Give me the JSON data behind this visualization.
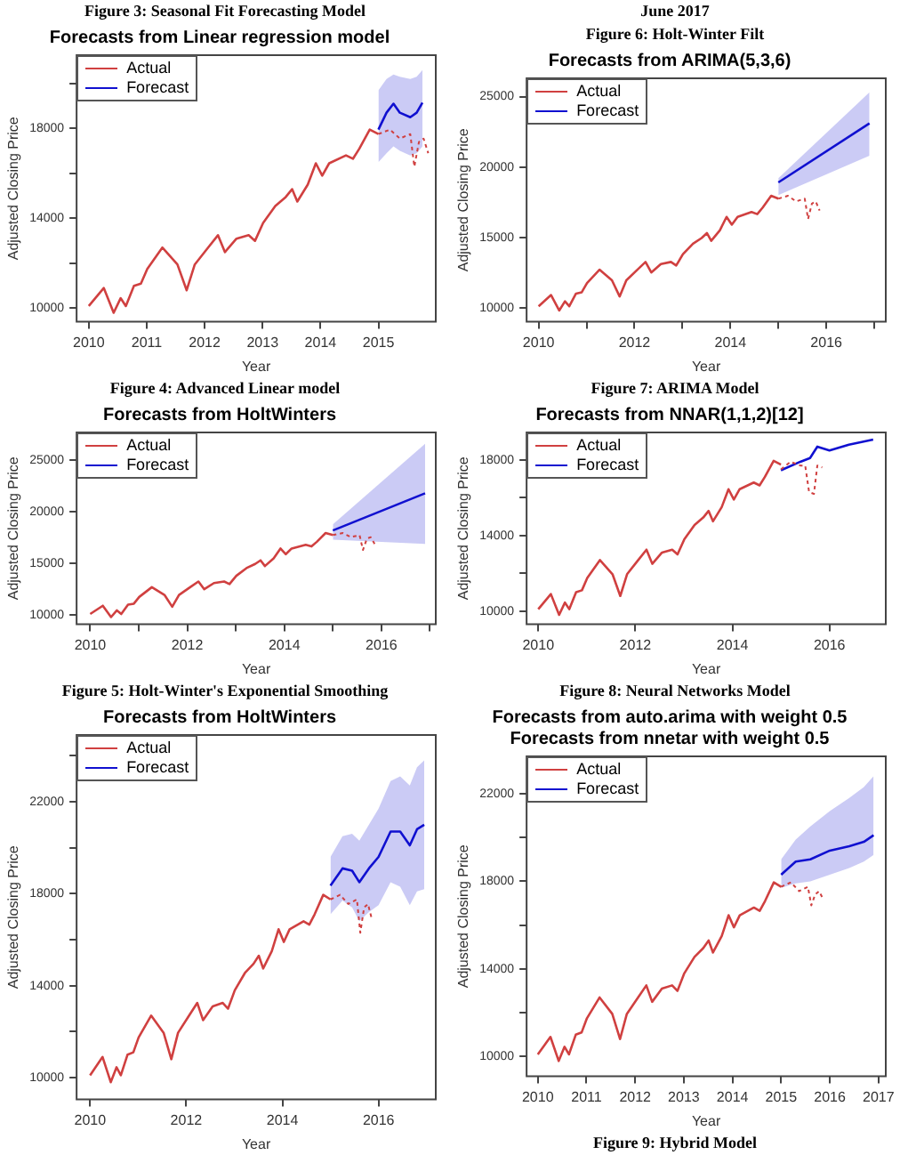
{
  "chart_data": [
    {
      "type": "line",
      "title": "Forecasts from Linear regression model",
      "xlabel": "Year",
      "ylabel": "Adjusted Closing Price",
      "annotations": [
        "Figure 3: Seasonal Fit Forecasting Model",
        "Figure 4: Advanced Linear model"
      ],
      "legend": "top left",
      "grid": false,
      "xlim": [
        2009.79,
        2015.99
      ],
      "xticks": [
        2010,
        2011,
        2012,
        2013,
        2014,
        2015
      ],
      "ylim": [
        9400,
        21260
      ],
      "yticks": [
        10000,
        {
          "value": 12000,
          "label": null
        },
        14000,
        {
          "value": 16000,
          "label": null
        },
        18000,
        {
          "value": 20000,
          "label": null
        }
      ],
      "series": [
        {
          "name": "Actual",
          "color": "#d04040",
          "x": [
            2010.0,
            2010.26,
            2010.43,
            2010.55,
            2010.64,
            2010.78,
            2010.9,
            2011.01,
            2011.27,
            2011.53,
            2011.69,
            2011.83,
            2012.06,
            2012.23,
            2012.35,
            2012.55,
            2012.76,
            2012.87,
            2013.01,
            2013.22,
            2013.4,
            2013.51,
            2013.6,
            2013.78,
            2013.92,
            2014.03,
            2014.15,
            2014.44,
            2014.56,
            2014.67,
            2014.85,
            2015.0
          ],
          "values": [
            10100,
            10900,
            9800,
            10450,
            10100,
            11000,
            11100,
            11750,
            12700,
            11950,
            10800,
            11950,
            12700,
            13250,
            12500,
            13100,
            13250,
            13000,
            13800,
            14550,
            14950,
            15300,
            14750,
            15500,
            16450,
            15900,
            16450,
            16800,
            16650,
            17100,
            17950,
            17750
          ]
        },
        {
          "color": "#d04040",
          "line_style": "dotted",
          "x": [
            2015.0,
            2015.2,
            2015.37,
            2015.55,
            2015.62,
            2015.7,
            2015.78,
            2015.86
          ],
          "values": [
            17750,
            17950,
            17550,
            17750,
            16300,
            17400,
            17550,
            16900
          ]
        },
        {
          "name": "Forecast",
          "color": "#1010d0",
          "x": [
            2015.0,
            2015.14,
            2015.26,
            2015.37,
            2015.55,
            2015.66,
            2015.76
          ],
          "values": [
            17950,
            18700,
            19100,
            18700,
            18500,
            18700,
            19150
          ],
          "upper": [
            19700,
            20200,
            20400,
            20300,
            20200,
            20300,
            20600
          ],
          "lower": [
            16500,
            16900,
            17200,
            17000,
            16800,
            16900,
            17200
          ]
        }
      ]
    },
    {
      "type": "line",
      "title": "Forecasts from ARIMA(5,3,6)",
      "xlabel": "Year",
      "ylabel": "Adjusted Closing Price",
      "annotations": [
        "June 2017",
        "Figure 6: Holt-Winter Filt",
        "Figure 7: ARIMA Model"
      ],
      "legend": "top left",
      "grid": false,
      "xlim": [
        2009.75,
        2017.24
      ],
      "xticks": [
        2010,
        {
          "value": 2011,
          "label": null
        },
        2012,
        {
          "value": 2013,
          "label": null
        },
        2014,
        {
          "value": 2015,
          "label": null
        },
        2016,
        {
          "value": 2017,
          "label": null
        }
      ],
      "ylim": [
        9000,
        26300
      ],
      "yticks": [
        10000,
        15000,
        20000,
        25000
      ],
      "series": [
        {
          "name": "Actual",
          "color": "#d04040",
          "x": [
            2010.0,
            2010.26,
            2010.43,
            2010.55,
            2010.64,
            2010.78,
            2010.9,
            2011.01,
            2011.27,
            2011.53,
            2011.69,
            2011.83,
            2012.06,
            2012.23,
            2012.35,
            2012.55,
            2012.76,
            2012.87,
            2013.01,
            2013.22,
            2013.4,
            2013.51,
            2013.6,
            2013.78,
            2013.92,
            2014.03,
            2014.15,
            2014.44,
            2014.56,
            2014.67,
            2014.85,
            2015.0
          ],
          "values": [
            10100,
            10900,
            9800,
            10450,
            10100,
            11000,
            11100,
            11750,
            12700,
            11950,
            10800,
            11950,
            12700,
            13250,
            12500,
            13100,
            13250,
            13000,
            13800,
            14550,
            14950,
            15300,
            14750,
            15500,
            16450,
            15900,
            16450,
            16800,
            16650,
            17100,
            17950,
            17750
          ]
        },
        {
          "color": "#d04040",
          "line_style": "dotted",
          "x": [
            2015.0,
            2015.2,
            2015.37,
            2015.55,
            2015.62,
            2015.7,
            2015.78,
            2015.86
          ],
          "values": [
            17750,
            17950,
            17550,
            17750,
            16300,
            17400,
            17550,
            16900
          ]
        },
        {
          "name": "Forecast",
          "color": "#1010d0",
          "x": [
            2015.0,
            2016.9
          ],
          "values": [
            18900,
            23100
          ],
          "upper": [
            19200,
            25300
          ],
          "lower": [
            18000,
            20800
          ]
        }
      ]
    },
    {
      "type": "line",
      "title": "Forecasts from HoltWinters",
      "xlabel": "Year",
      "ylabel": "Adjusted Closing Price",
      "annotations": [
        "Figure 5: Holt-Winter's Exponential Smoothing"
      ],
      "legend": "top left",
      "grid": false,
      "xlim": [
        2009.72,
        2017.12
      ],
      "xticks": [
        2010,
        {
          "value": 2011,
          "label": null
        },
        2012,
        {
          "value": 2013,
          "label": null
        },
        2014,
        {
          "value": 2015,
          "label": null
        },
        2016,
        {
          "value": 2017,
          "label": null
        }
      ],
      "ylim": [
        9100,
        27700
      ],
      "yticks": [
        10000,
        15000,
        20000,
        25000
      ],
      "series": [
        {
          "name": "Actual",
          "color": "#d04040",
          "x": [
            2010.0,
            2010.26,
            2010.43,
            2010.55,
            2010.64,
            2010.78,
            2010.9,
            2011.01,
            2011.27,
            2011.53,
            2011.69,
            2011.83,
            2012.06,
            2012.23,
            2012.35,
            2012.55,
            2012.76,
            2012.87,
            2013.01,
            2013.22,
            2013.4,
            2013.51,
            2013.6,
            2013.78,
            2013.92,
            2014.03,
            2014.15,
            2014.44,
            2014.56,
            2014.67,
            2014.85,
            2015.0
          ],
          "values": [
            10100,
            10900,
            9800,
            10450,
            10100,
            11000,
            11100,
            11750,
            12700,
            11950,
            10800,
            11950,
            12700,
            13250,
            12500,
            13100,
            13250,
            13000,
            13800,
            14550,
            14950,
            15300,
            14750,
            15500,
            16450,
            15900,
            16450,
            16800,
            16650,
            17100,
            17950,
            17750
          ]
        },
        {
          "color": "#d04040",
          "line_style": "dotted",
          "x": [
            2015.0,
            2015.2,
            2015.37,
            2015.55,
            2015.62,
            2015.7,
            2015.78,
            2015.86
          ],
          "values": [
            17750,
            17950,
            17550,
            17750,
            16300,
            17400,
            17550,
            16900
          ]
        },
        {
          "name": "Forecast",
          "color": "#1010d0",
          "x": [
            2015.0,
            2016.9
          ],
          "values": [
            18200,
            21800
          ],
          "upper": [
            18800,
            26600
          ],
          "lower": [
            17300,
            16900
          ]
        }
      ]
    },
    {
      "type": "line",
      "title": "Forecasts from NNAR(1,1,2)[12]",
      "xlabel": "Year",
      "ylabel": "Adjusted Closing Price",
      "annotations": [
        "Figure 8: Neural Networks Model"
      ],
      "legend": "top left",
      "grid": false,
      "xlim": [
        2009.76,
        2017.16
      ],
      "xticks": [
        2010,
        2012,
        2014,
        2016
      ],
      "ylim": [
        9300,
        19450
      ],
      "yticks": [
        10000,
        {
          "value": 12000,
          "label": null
        },
        14000,
        {
          "value": 16000,
          "label": null
        },
        18000
      ],
      "series": [
        {
          "name": "Actual",
          "color": "#d04040",
          "x": [
            2010.0,
            2010.26,
            2010.43,
            2010.55,
            2010.64,
            2010.78,
            2010.9,
            2011.01,
            2011.27,
            2011.53,
            2011.69,
            2011.83,
            2012.06,
            2012.23,
            2012.35,
            2012.55,
            2012.76,
            2012.87,
            2013.01,
            2013.22,
            2013.4,
            2013.51,
            2013.6,
            2013.78,
            2013.92,
            2014.03,
            2014.15,
            2014.44,
            2014.56,
            2014.67,
            2014.85,
            2015.0
          ],
          "values": [
            10100,
            10900,
            9800,
            10450,
            10100,
            11000,
            11100,
            11750,
            12700,
            11950,
            10800,
            11950,
            12700,
            13250,
            12500,
            13100,
            13250,
            13000,
            13800,
            14550,
            14950,
            15300,
            14750,
            15500,
            16450,
            15900,
            16450,
            16800,
            16650,
            17100,
            17950,
            17750
          ]
        },
        {
          "color": "#d04040",
          "line_style": "dotted",
          "x": [
            2015.0,
            2015.2,
            2015.4,
            2015.5,
            2015.58,
            2015.68,
            2015.75,
            2015.85
          ],
          "values": [
            17500,
            17900,
            17700,
            17700,
            16300,
            16200,
            17700,
            17600
          ]
        },
        {
          "name": "Forecast",
          "color": "#1010d0",
          "x": [
            2015.0,
            2015.4,
            2015.6,
            2015.75,
            2016.0,
            2016.4,
            2016.9
          ],
          "values": [
            17450,
            17900,
            18100,
            18700,
            18500,
            18800,
            19070
          ]
        }
      ]
    },
    {
      "type": "line",
      "title": "Forecasts from HoltWinters",
      "xlabel": "Year",
      "ylabel": "Adjusted Closing Price",
      "legend": "top left",
      "grid": false,
      "xlim": [
        2009.72,
        2017.19
      ],
      "xticks": [
        2010,
        2012,
        2014,
        2016
      ],
      "ylim": [
        9050,
        24900
      ],
      "yticks": [
        10000,
        {
          "value": 12000,
          "label": null
        },
        14000,
        {
          "value": 16000,
          "label": null
        },
        18000,
        {
          "value": 20000,
          "label": null
        },
        22000,
        {
          "value": 24000,
          "label": null
        }
      ],
      "series": [
        {
          "name": "Actual",
          "color": "#d04040",
          "x": [
            2010.0,
            2010.26,
            2010.43,
            2010.55,
            2010.64,
            2010.78,
            2010.9,
            2011.01,
            2011.27,
            2011.53,
            2011.69,
            2011.83,
            2012.06,
            2012.23,
            2012.35,
            2012.55,
            2012.76,
            2012.87,
            2013.01,
            2013.22,
            2013.4,
            2013.51,
            2013.6,
            2013.78,
            2013.92,
            2014.03,
            2014.15,
            2014.44,
            2014.56,
            2014.67,
            2014.85,
            2015.0
          ],
          "values": [
            10100,
            10900,
            9800,
            10450,
            10100,
            11000,
            11100,
            11750,
            12700,
            11950,
            10800,
            11950,
            12700,
            13250,
            12500,
            13100,
            13250,
            13000,
            13800,
            14550,
            14950,
            15300,
            14750,
            15500,
            16450,
            15900,
            16450,
            16800,
            16650,
            17100,
            17950,
            17750
          ]
        },
        {
          "color": "#d04040",
          "line_style": "dotted",
          "x": [
            2015.0,
            2015.2,
            2015.37,
            2015.55,
            2015.62,
            2015.7,
            2015.78,
            2015.86
          ],
          "values": [
            17750,
            17950,
            17550,
            17750,
            16300,
            17400,
            17550,
            16900
          ]
        },
        {
          "name": "Forecast",
          "color": "#1010d0",
          "x": [
            2015.0,
            2015.25,
            2015.45,
            2015.6,
            2015.8,
            2016.0,
            2016.25,
            2016.45,
            2016.65,
            2016.8,
            2016.95
          ],
          "values": [
            18350,
            19100,
            19000,
            18500,
            19100,
            19600,
            20700,
            20700,
            20100,
            20800,
            21000
          ],
          "upper": [
            19600,
            20500,
            20600,
            20300,
            21000,
            21700,
            22900,
            23100,
            22700,
            23500,
            23800
          ],
          "lower": [
            17100,
            17700,
            17400,
            16800,
            17200,
            17500,
            18500,
            18300,
            17500,
            18100,
            18200
          ]
        }
      ]
    },
    {
      "type": "line",
      "title": "Forecasts from auto.arima with weight 0.5",
      "subtitle": "Forecasts from nnetar with weight 0.5",
      "xlabel": "Year",
      "ylabel": "Adjusted Closing Price",
      "annotations": [
        "Figure 9: Hybrid Model"
      ],
      "legend": "top left",
      "grid": false,
      "xlim": [
        2009.77,
        2017.15
      ],
      "xticks": [
        2010,
        2011,
        2012,
        2013,
        2014,
        2015,
        2016,
        2017
      ],
      "ylim": [
        9100,
        23700
      ],
      "yticks": [
        10000,
        {
          "value": 12000,
          "label": null
        },
        14000,
        {
          "value": 16000,
          "label": null
        },
        18000,
        {
          "value": 20000,
          "label": null
        },
        22000
      ],
      "series": [
        {
          "name": "Actual",
          "color": "#d04040",
          "x": [
            2010.0,
            2010.26,
            2010.43,
            2010.55,
            2010.64,
            2010.78,
            2010.9,
            2011.01,
            2011.27,
            2011.53,
            2011.69,
            2011.83,
            2012.06,
            2012.23,
            2012.35,
            2012.55,
            2012.76,
            2012.87,
            2013.01,
            2013.22,
            2013.4,
            2013.51,
            2013.6,
            2013.78,
            2013.92,
            2014.03,
            2014.15,
            2014.44,
            2014.56,
            2014.67,
            2014.85,
            2015.0
          ],
          "values": [
            10100,
            10900,
            9800,
            10450,
            10100,
            11000,
            11100,
            11750,
            12700,
            11950,
            10800,
            11950,
            12700,
            13250,
            12500,
            13100,
            13250,
            13000,
            13800,
            14550,
            14950,
            15300,
            14750,
            15500,
            16450,
            15900,
            16450,
            16800,
            16650,
            17100,
            17950,
            17750
          ]
        },
        {
          "color": "#d04040",
          "line_style": "dotted",
          "x": [
            2015.0,
            2015.2,
            2015.37,
            2015.55,
            2015.62,
            2015.7,
            2015.78,
            2015.86
          ],
          "values": [
            17750,
            17950,
            17550,
            17750,
            16900,
            17400,
            17550,
            17200
          ]
        },
        {
          "name": "Forecast",
          "color": "#1010d0",
          "x": [
            2015.0,
            2015.3,
            2015.6,
            2016.0,
            2016.4,
            2016.7,
            2016.9
          ],
          "values": [
            18300,
            18900,
            19000,
            19400,
            19600,
            19800,
            20100
          ],
          "upper": [
            19000,
            19900,
            20500,
            21200,
            21800,
            22300,
            22800
          ],
          "lower": [
            17700,
            17900,
            18000,
            18300,
            18600,
            18900,
            19200
          ]
        }
      ]
    }
  ]
}
